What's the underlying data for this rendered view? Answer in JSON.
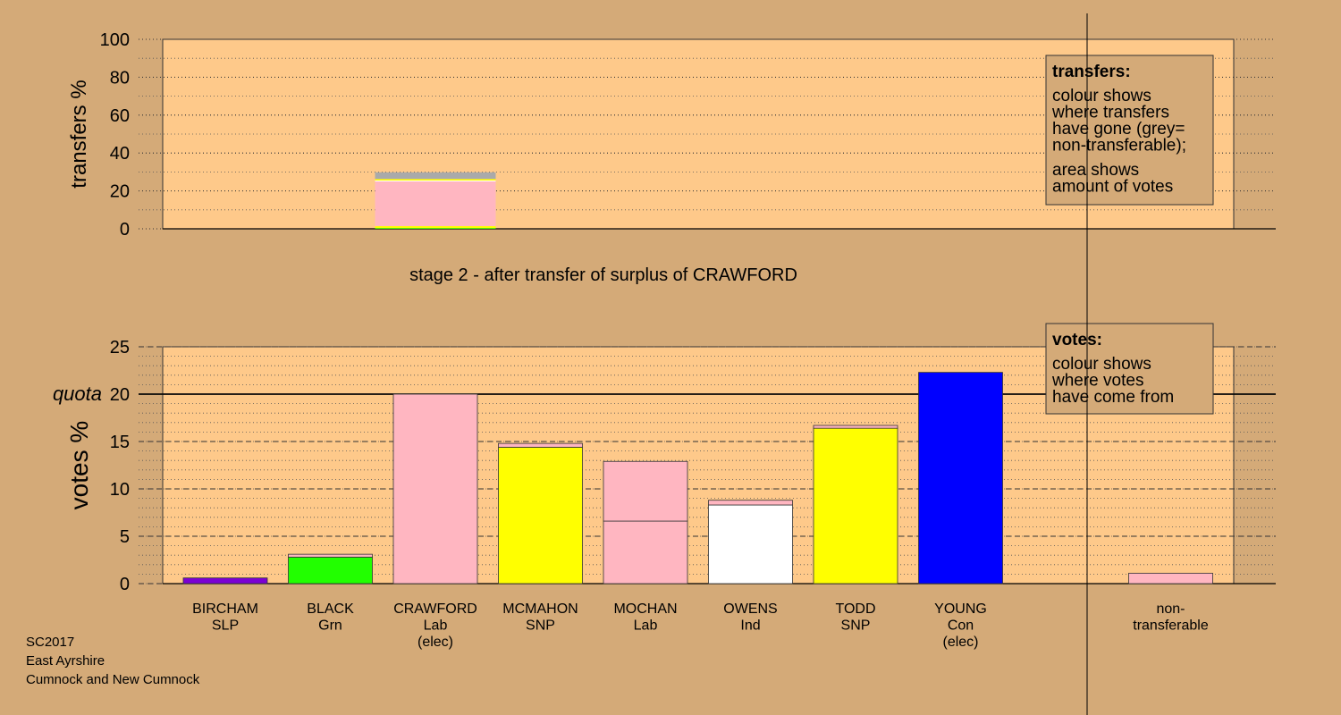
{
  "chart_data": [
    {
      "type": "stacked-bar",
      "ylabel": "transfers %",
      "ylim": [
        0,
        100
      ],
      "yticks": [
        0,
        20,
        40,
        60,
        80,
        100
      ],
      "grid": true,
      "caption": "stage 2 - after transfer of surplus of CRAWFORD",
      "legend": {
        "title": "transfers:",
        "paragraphs": [
          [
            "colour shows",
            "where transfers",
            "have gone (grey=",
            "non-transferable);"
          ],
          [
            "area shows",
            "amount of votes"
          ]
        ]
      },
      "bars": [
        {
          "segments": [
            {
              "color": "#22ff00",
              "value": 0.4
            },
            {
              "color": "#ffff00",
              "value": 1.0
            },
            {
              "color": "#ffb6c1",
              "value": 23.6
            },
            {
              "color": "#ffffff",
              "value": 0.5
            },
            {
              "color": "#ffff00",
              "value": 0.8
            },
            {
              "color": "#aaaaaa",
              "value": 3.5
            }
          ]
        }
      ]
    },
    {
      "type": "stacked-bar",
      "ylabel": "votes %",
      "ylim": [
        0,
        25
      ],
      "yticks": [
        0,
        5,
        10,
        15,
        20,
        25
      ],
      "grid": true,
      "quota": {
        "value": 20,
        "label": "quota"
      },
      "legend": {
        "title": "votes:",
        "paragraphs": [
          [
            "colour shows",
            "where votes",
            "have come from"
          ]
        ]
      },
      "bars": [
        {
          "label": [
            "BIRCHAM",
            "SLP"
          ],
          "segments": [
            {
              "color": "#7b00d4",
              "value": 0.6
            }
          ]
        },
        {
          "label": [
            "BLACK",
            "Grn"
          ],
          "segments": [
            {
              "color": "#22ff00",
              "value": 2.8
            },
            {
              "color": "#ffb6c1",
              "value": 0.3
            }
          ]
        },
        {
          "label": [
            "CRAWFORD",
            "Lab",
            "(elec)"
          ],
          "segments": [
            {
              "color": "#ffb6c1",
              "value": 20.0
            }
          ]
        },
        {
          "label": [
            "MCMAHON",
            "SNP"
          ],
          "segments": [
            {
              "color": "#ffff00",
              "value": 14.4
            },
            {
              "color": "#ffb6c1",
              "value": 0.4
            }
          ]
        },
        {
          "label": [
            "MOCHAN",
            "Lab"
          ],
          "segments": [
            {
              "color": "#ffb6c1",
              "value": 6.6
            },
            {
              "color": "#ffb6c1",
              "value": 6.3
            }
          ]
        },
        {
          "label": [
            "OWENS",
            "Ind"
          ],
          "segments": [
            {
              "color": "#ffffff",
              "value": 8.3
            },
            {
              "color": "#ffb6c1",
              "value": 0.5
            }
          ]
        },
        {
          "label": [
            "TODD",
            "SNP"
          ],
          "segments": [
            {
              "color": "#ffff00",
              "value": 16.4
            },
            {
              "color": "#ffb6c1",
              "value": 0.3
            }
          ]
        },
        {
          "label": [
            "YOUNG",
            "Con",
            "(elec)"
          ],
          "segments": [
            {
              "color": "#0000ff",
              "value": 22.3
            }
          ]
        },
        {
          "label": [
            "non-",
            "transferable"
          ],
          "segments": [
            {
              "color": "#ffb6c1",
              "value": 1.1
            }
          ]
        }
      ]
    }
  ],
  "footer": {
    "lines": [
      "SC2017",
      "East Ayrshire",
      "Cumnock and New Cumnock"
    ]
  }
}
